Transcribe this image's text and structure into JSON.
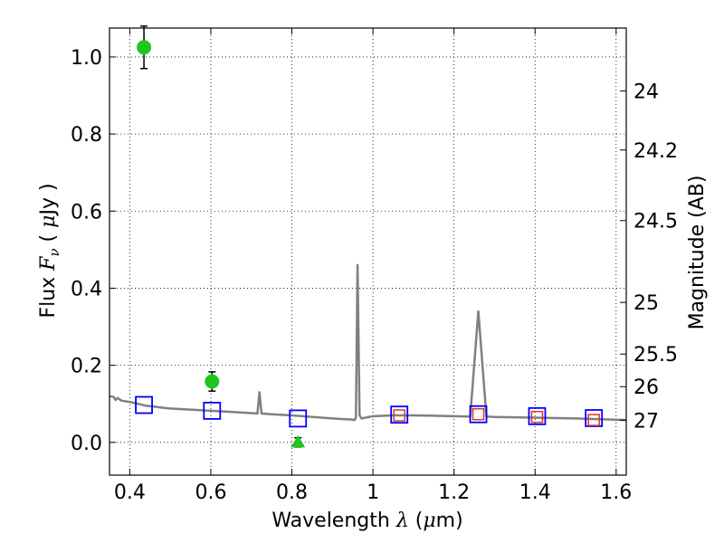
{
  "chart_data": {
    "type": "scatter",
    "title": "",
    "xlabel": "Wavelength  λ (μm)",
    "ylabel": "Flux  F_ν  ( μJy )",
    "ylabel_right": "Magnitude (AB)",
    "xlim": [
      0.35,
      1.625
    ],
    "ylim": [
      -0.085,
      1.075
    ],
    "grid": true,
    "x_ticks": [
      {
        "value": 0.4,
        "label": "0.4"
      },
      {
        "value": 0.6,
        "label": "0.6"
      },
      {
        "value": 0.8,
        "label": "0.8"
      },
      {
        "value": 1.0,
        "label": "1"
      },
      {
        "value": 1.2,
        "label": "1.2"
      },
      {
        "value": 1.4,
        "label": "1.4"
      },
      {
        "value": 1.6,
        "label": "1.6"
      }
    ],
    "y_ticks": [
      {
        "value": 0.0,
        "label": "0.0"
      },
      {
        "value": 0.2,
        "label": "0.2"
      },
      {
        "value": 0.4,
        "label": "0.4"
      },
      {
        "value": 0.6,
        "label": "0.6"
      },
      {
        "value": 0.8,
        "label": "0.8"
      },
      {
        "value": 1.0,
        "label": "1.0"
      }
    ],
    "right_ticks": [
      {
        "mag": 24,
        "label": "24"
      },
      {
        "mag": 24.2,
        "label": "24.2"
      },
      {
        "mag": 24.5,
        "label": "24.5"
      },
      {
        "mag": 25,
        "label": "25"
      },
      {
        "mag": 25.5,
        "label": "25.5"
      },
      {
        "mag": 26,
        "label": "26"
      },
      {
        "mag": 27,
        "label": "27"
      }
    ],
    "series": [
      {
        "kind": "line",
        "color": "#808080",
        "points": [
          [
            0.35,
            0.12
          ],
          [
            0.36,
            0.118
          ],
          [
            0.365,
            0.11
          ],
          [
            0.37,
            0.115
          ],
          [
            0.38,
            0.108
          ],
          [
            0.4,
            0.105
          ],
          [
            0.42,
            0.1
          ],
          [
            0.44,
            0.095
          ],
          [
            0.46,
            0.093
          ],
          [
            0.48,
            0.09
          ],
          [
            0.5,
            0.088
          ],
          [
            0.55,
            0.085
          ],
          [
            0.6,
            0.082
          ],
          [
            0.65,
            0.079
          ],
          [
            0.7,
            0.076
          ],
          [
            0.715,
            0.075
          ],
          [
            0.72,
            0.13
          ],
          [
            0.725,
            0.075
          ],
          [
            0.75,
            0.073
          ],
          [
            0.8,
            0.07
          ],
          [
            0.85,
            0.066
          ],
          [
            0.9,
            0.062
          ],
          [
            0.95,
            0.059
          ],
          [
            0.955,
            0.058
          ],
          [
            0.958,
            0.065
          ],
          [
            0.962,
            0.46
          ],
          [
            0.967,
            0.07
          ],
          [
            0.972,
            0.062
          ],
          [
            1.0,
            0.068
          ],
          [
            1.05,
            0.07
          ],
          [
            1.1,
            0.07
          ],
          [
            1.15,
            0.069
          ],
          [
            1.2,
            0.068
          ],
          [
            1.24,
            0.067
          ],
          [
            1.26,
            0.34
          ],
          [
            1.28,
            0.067
          ],
          [
            1.3,
            0.066
          ],
          [
            1.4,
            0.064
          ],
          [
            1.5,
            0.062
          ],
          [
            1.625,
            0.058
          ]
        ]
      },
      {
        "kind": "errorbar",
        "marker": "circle",
        "color": "#22c41e",
        "points": [
          {
            "x": 0.435,
            "y": 1.025,
            "yerr": 0.055
          },
          {
            "x": 0.603,
            "y": 0.158,
            "yerr": 0.025
          }
        ]
      },
      {
        "kind": "errorbar",
        "marker": "triangle",
        "color": "#22c41e",
        "points": [
          {
            "x": 0.815,
            "y": 0.0,
            "yerr": 0.012
          }
        ]
      },
      {
        "kind": "scatter",
        "marker": "square",
        "color": "#0000ff",
        "points": [
          {
            "x": 0.435,
            "y": 0.097
          },
          {
            "x": 0.603,
            "y": 0.082
          },
          {
            "x": 0.815,
            "y": 0.062
          },
          {
            "x": 1.065,
            "y": 0.072
          },
          {
            "x": 1.26,
            "y": 0.073
          },
          {
            "x": 1.405,
            "y": 0.068
          },
          {
            "x": 1.545,
            "y": 0.063
          }
        ]
      },
      {
        "kind": "scatter",
        "marker": "square-small",
        "color": "#e03030",
        "points": [
          {
            "x": 1.065,
            "y": 0.07
          },
          {
            "x": 1.26,
            "y": 0.073
          },
          {
            "x": 1.405,
            "y": 0.066
          },
          {
            "x": 1.545,
            "y": 0.058
          }
        ]
      }
    ]
  }
}
